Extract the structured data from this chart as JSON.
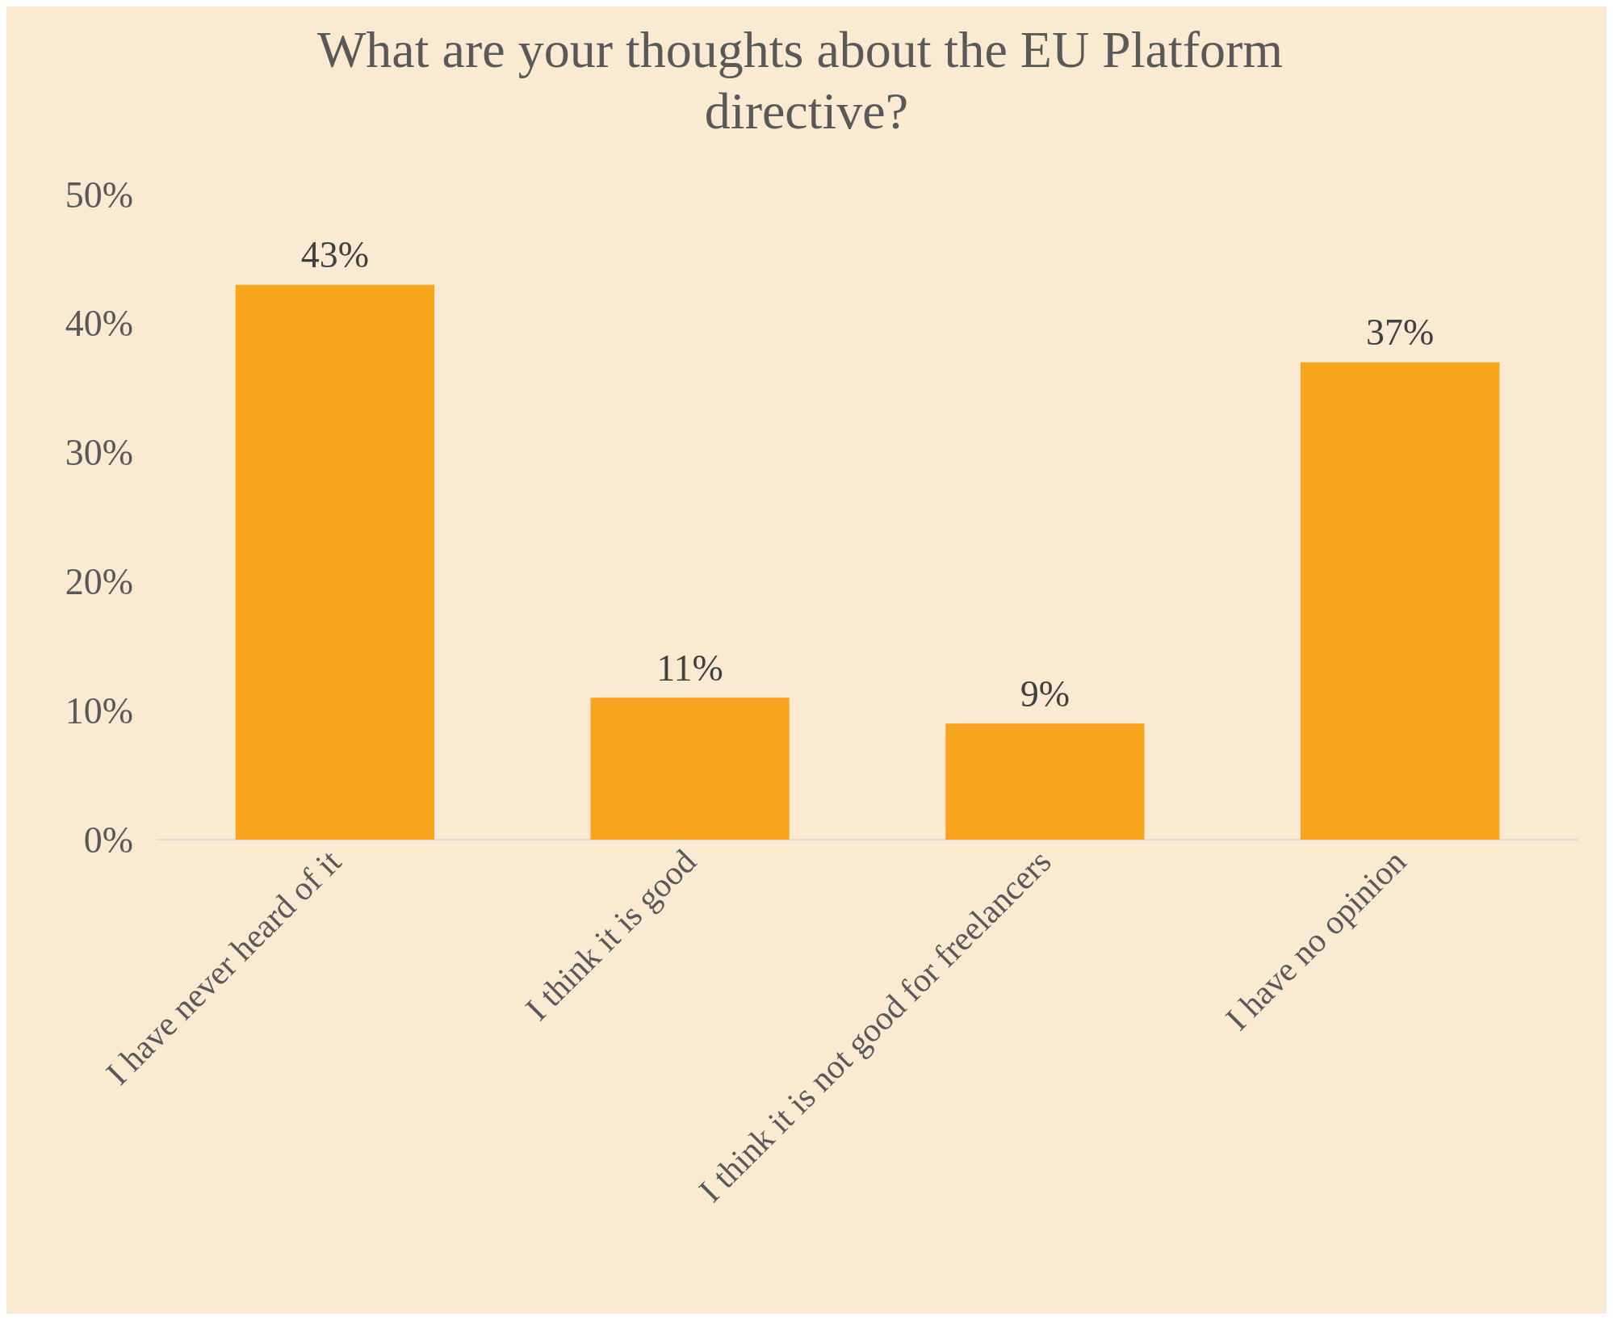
{
  "chart_data": {
    "type": "bar",
    "title": "What are your thoughts about the EU Platform directive?",
    "categories": [
      "I have never heard of it",
      "I think it is good",
      "I think it is not good for freelancers",
      "I have no opinion"
    ],
    "values": [
      43,
      11,
      9,
      37
    ],
    "color": "#f8a51d",
    "value_labels": [
      "43%",
      "11%",
      "9%",
      "37%"
    ],
    "ylim": [
      0,
      50
    ],
    "yticks": [
      {
        "value": 0,
        "label": "0%"
      },
      {
        "value": 10,
        "label": "10%"
      },
      {
        "value": 20,
        "label": "20%"
      },
      {
        "value": 30,
        "label": "30%"
      },
      {
        "value": 40,
        "label": "40%"
      },
      {
        "value": 50,
        "label": "50%"
      }
    ],
    "grid": false
  }
}
